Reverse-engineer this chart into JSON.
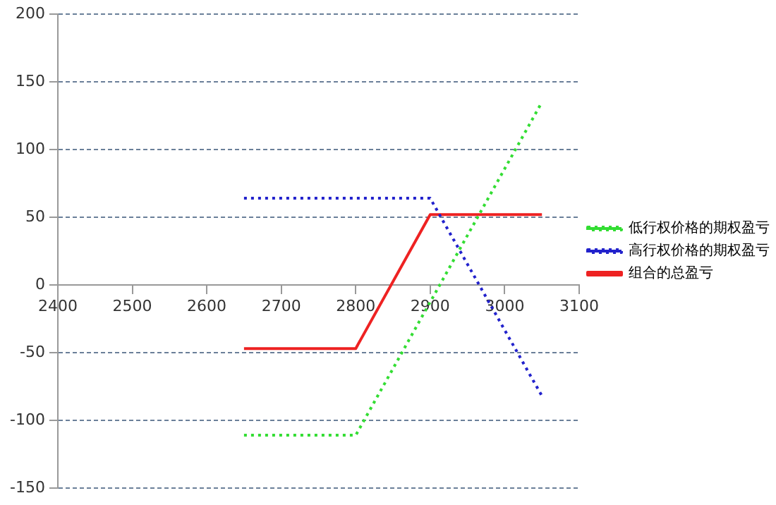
{
  "chart_data": {
    "type": "line",
    "xlim": [
      2400,
      3100
    ],
    "xticks": [
      2400,
      2500,
      2600,
      2700,
      2800,
      2900,
      3000,
      3100
    ],
    "ylim": [
      -150,
      200
    ],
    "yticks": [
      -150,
      -100,
      -50,
      0,
      50,
      100,
      150,
      200
    ],
    "grid": "y",
    "legend": "right",
    "marker": "none",
    "series": [
      {
        "name": "低行权价格的期权盈亏",
        "color": "#33dd33",
        "x": [
          2650,
          2800,
          3050
        ],
        "values": [
          -111,
          -111,
          135
        ],
        "line_style": "dotted"
      },
      {
        "name": "高行权价格的期权盈亏",
        "color": "#2222cc",
        "x": [
          2650,
          2900,
          3050
        ],
        "values": [
          64,
          64,
          -82
        ],
        "line_style": "dotted"
      },
      {
        "name": "组合的总盈亏",
        "color": "#ee2222",
        "x": [
          2650,
          2800,
          2900,
          3050
        ],
        "values": [
          -47,
          -47,
          52,
          52
        ],
        "line_style": "solid"
      }
    ]
  }
}
